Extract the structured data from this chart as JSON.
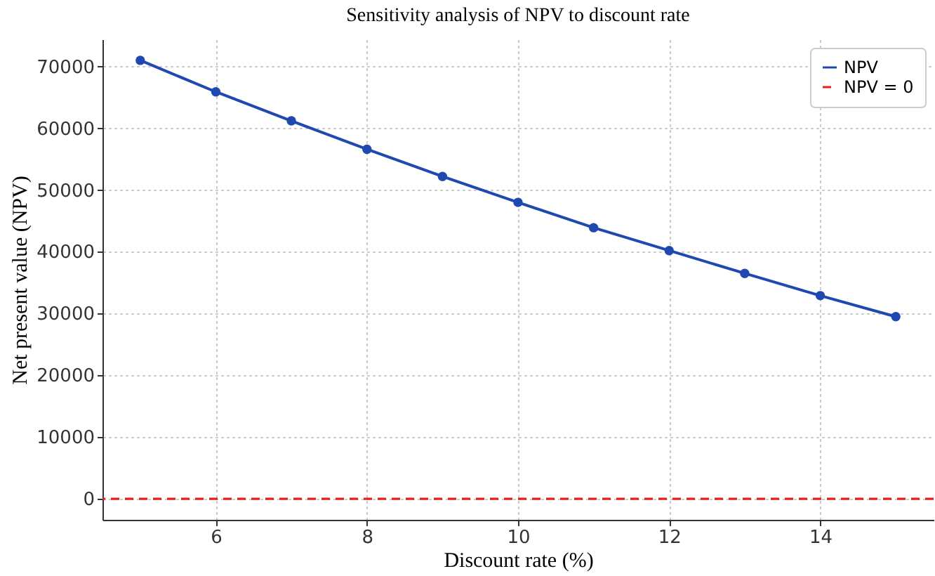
{
  "chart_data": {
    "type": "line",
    "title": "Sensitivity analysis of NPV to discount rate",
    "xlabel": "Discount rate (%)",
    "ylabel": "Net present value (NPV)",
    "x": [
      5,
      6,
      7,
      8,
      9,
      10,
      11,
      12,
      13,
      14,
      15
    ],
    "series": [
      {
        "name": "NPV",
        "color": "#1f49b0",
        "values": [
          71000,
          65900,
          61200,
          56600,
          52200,
          48000,
          43900,
          40200,
          36500,
          32900,
          29500
        ]
      }
    ],
    "ref_lines": [
      {
        "axis": "y",
        "value": 0,
        "label": "NPV = 0",
        "color": "#e8201c",
        "line_style": "dashed"
      }
    ],
    "xlim": [
      4.5,
      15.5
    ],
    "xticks": [
      6,
      8,
      10,
      12,
      14
    ],
    "ylim": [
      -3400,
      74400
    ],
    "yticks": [
      0,
      10000,
      20000,
      30000,
      40000,
      50000,
      60000,
      70000
    ],
    "grid": true,
    "legend": "top right",
    "marker": "circle",
    "line_style": "solid"
  }
}
